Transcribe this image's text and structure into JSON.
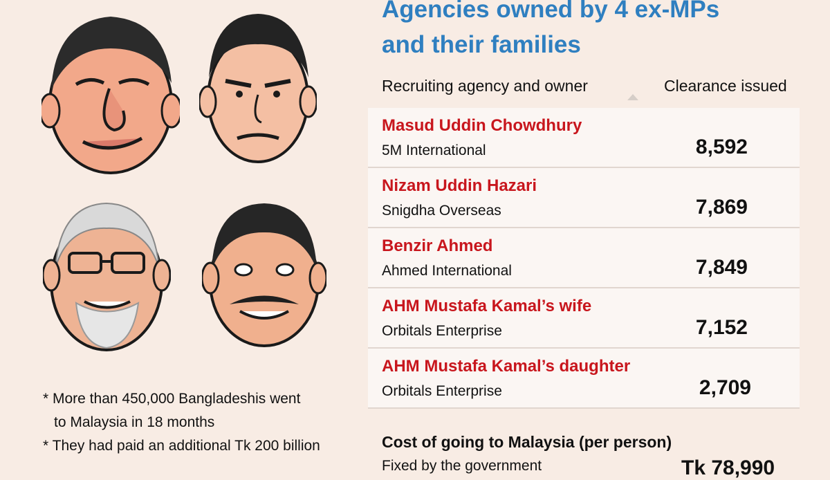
{
  "header": {
    "title_line1": "Agencies owned by 4 ex-MPs",
    "title_line2": "and their families",
    "col_left": "Recruiting agency and owner",
    "col_right": "Clearance issued"
  },
  "chart_data": {
    "type": "table",
    "title": "Agencies owned by 4 ex-MPs and their families",
    "columns": [
      "Recruiting agency and owner",
      "Clearance issued"
    ],
    "rows": [
      {
        "owner": "Masud Uddin Chowdhury",
        "agency": "5M International",
        "value": "8,592"
      },
      {
        "owner": "Nizam Uddin Hazari",
        "agency": "Snigdha Overseas",
        "value": "7,869"
      },
      {
        "owner": "Benzir Ahmed",
        "agency": "Ahmed International",
        "value": "7,849"
      },
      {
        "owner": "AHM Mustafa Kamal’s wife",
        "agency": "Orbitals Enterprise",
        "value": "7,152"
      },
      {
        "owner": "AHM Mustafa Kamal’s daughter",
        "agency": "Orbitals Enterprise",
        "value": "2,709"
      }
    ]
  },
  "notes": {
    "line1": "* More than 450,000 Bangladeshis went",
    "line2": "to Malaysia in 18 months",
    "line3": "* They had paid an additional Tk 200 billion"
  },
  "cost": {
    "title": "Cost of going to Malaysia (per person)",
    "line_label": "Fixed by the government",
    "line_value": "Tk 78,990"
  },
  "colors": {
    "title": "#2f7fc0",
    "owner_name": "#c8161d",
    "background": "#f8ece4",
    "row_background": "#fbf6f3"
  }
}
